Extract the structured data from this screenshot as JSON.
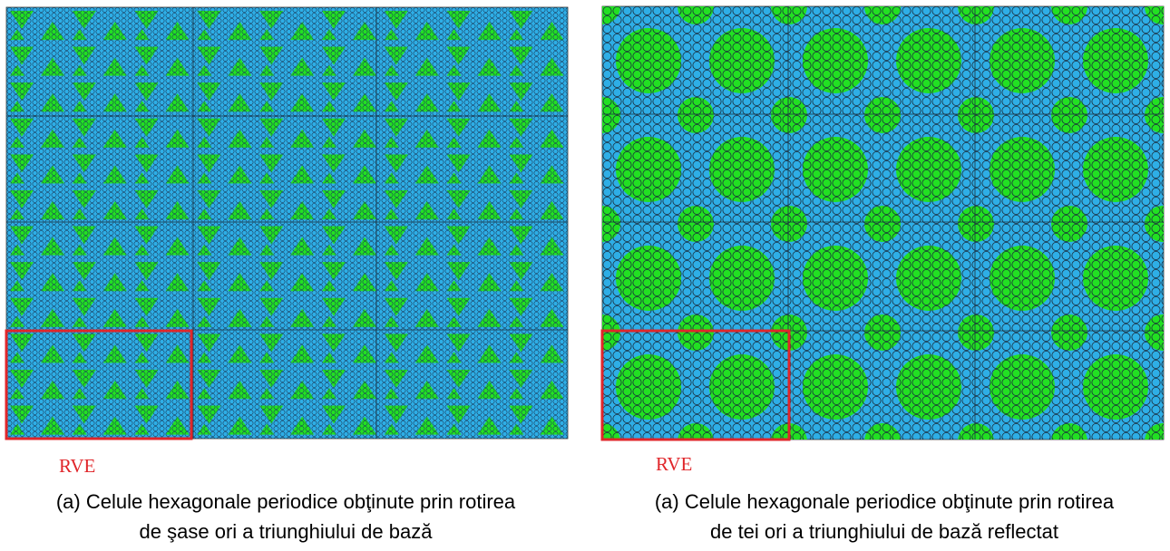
{
  "figures": [
    {
      "label": "RVE",
      "caption": [
        "(a) Celule hexagonale periodice obţinute prin rotirea",
        "de şase ori a triunghiului de bază"
      ]
    },
    {
      "label": "RVE",
      "caption": [
        "(a) Celule hexagonale periodice obţinute prin rotirea",
        "de tei ori a triunghiului de bază reflectat"
      ]
    }
  ]
}
